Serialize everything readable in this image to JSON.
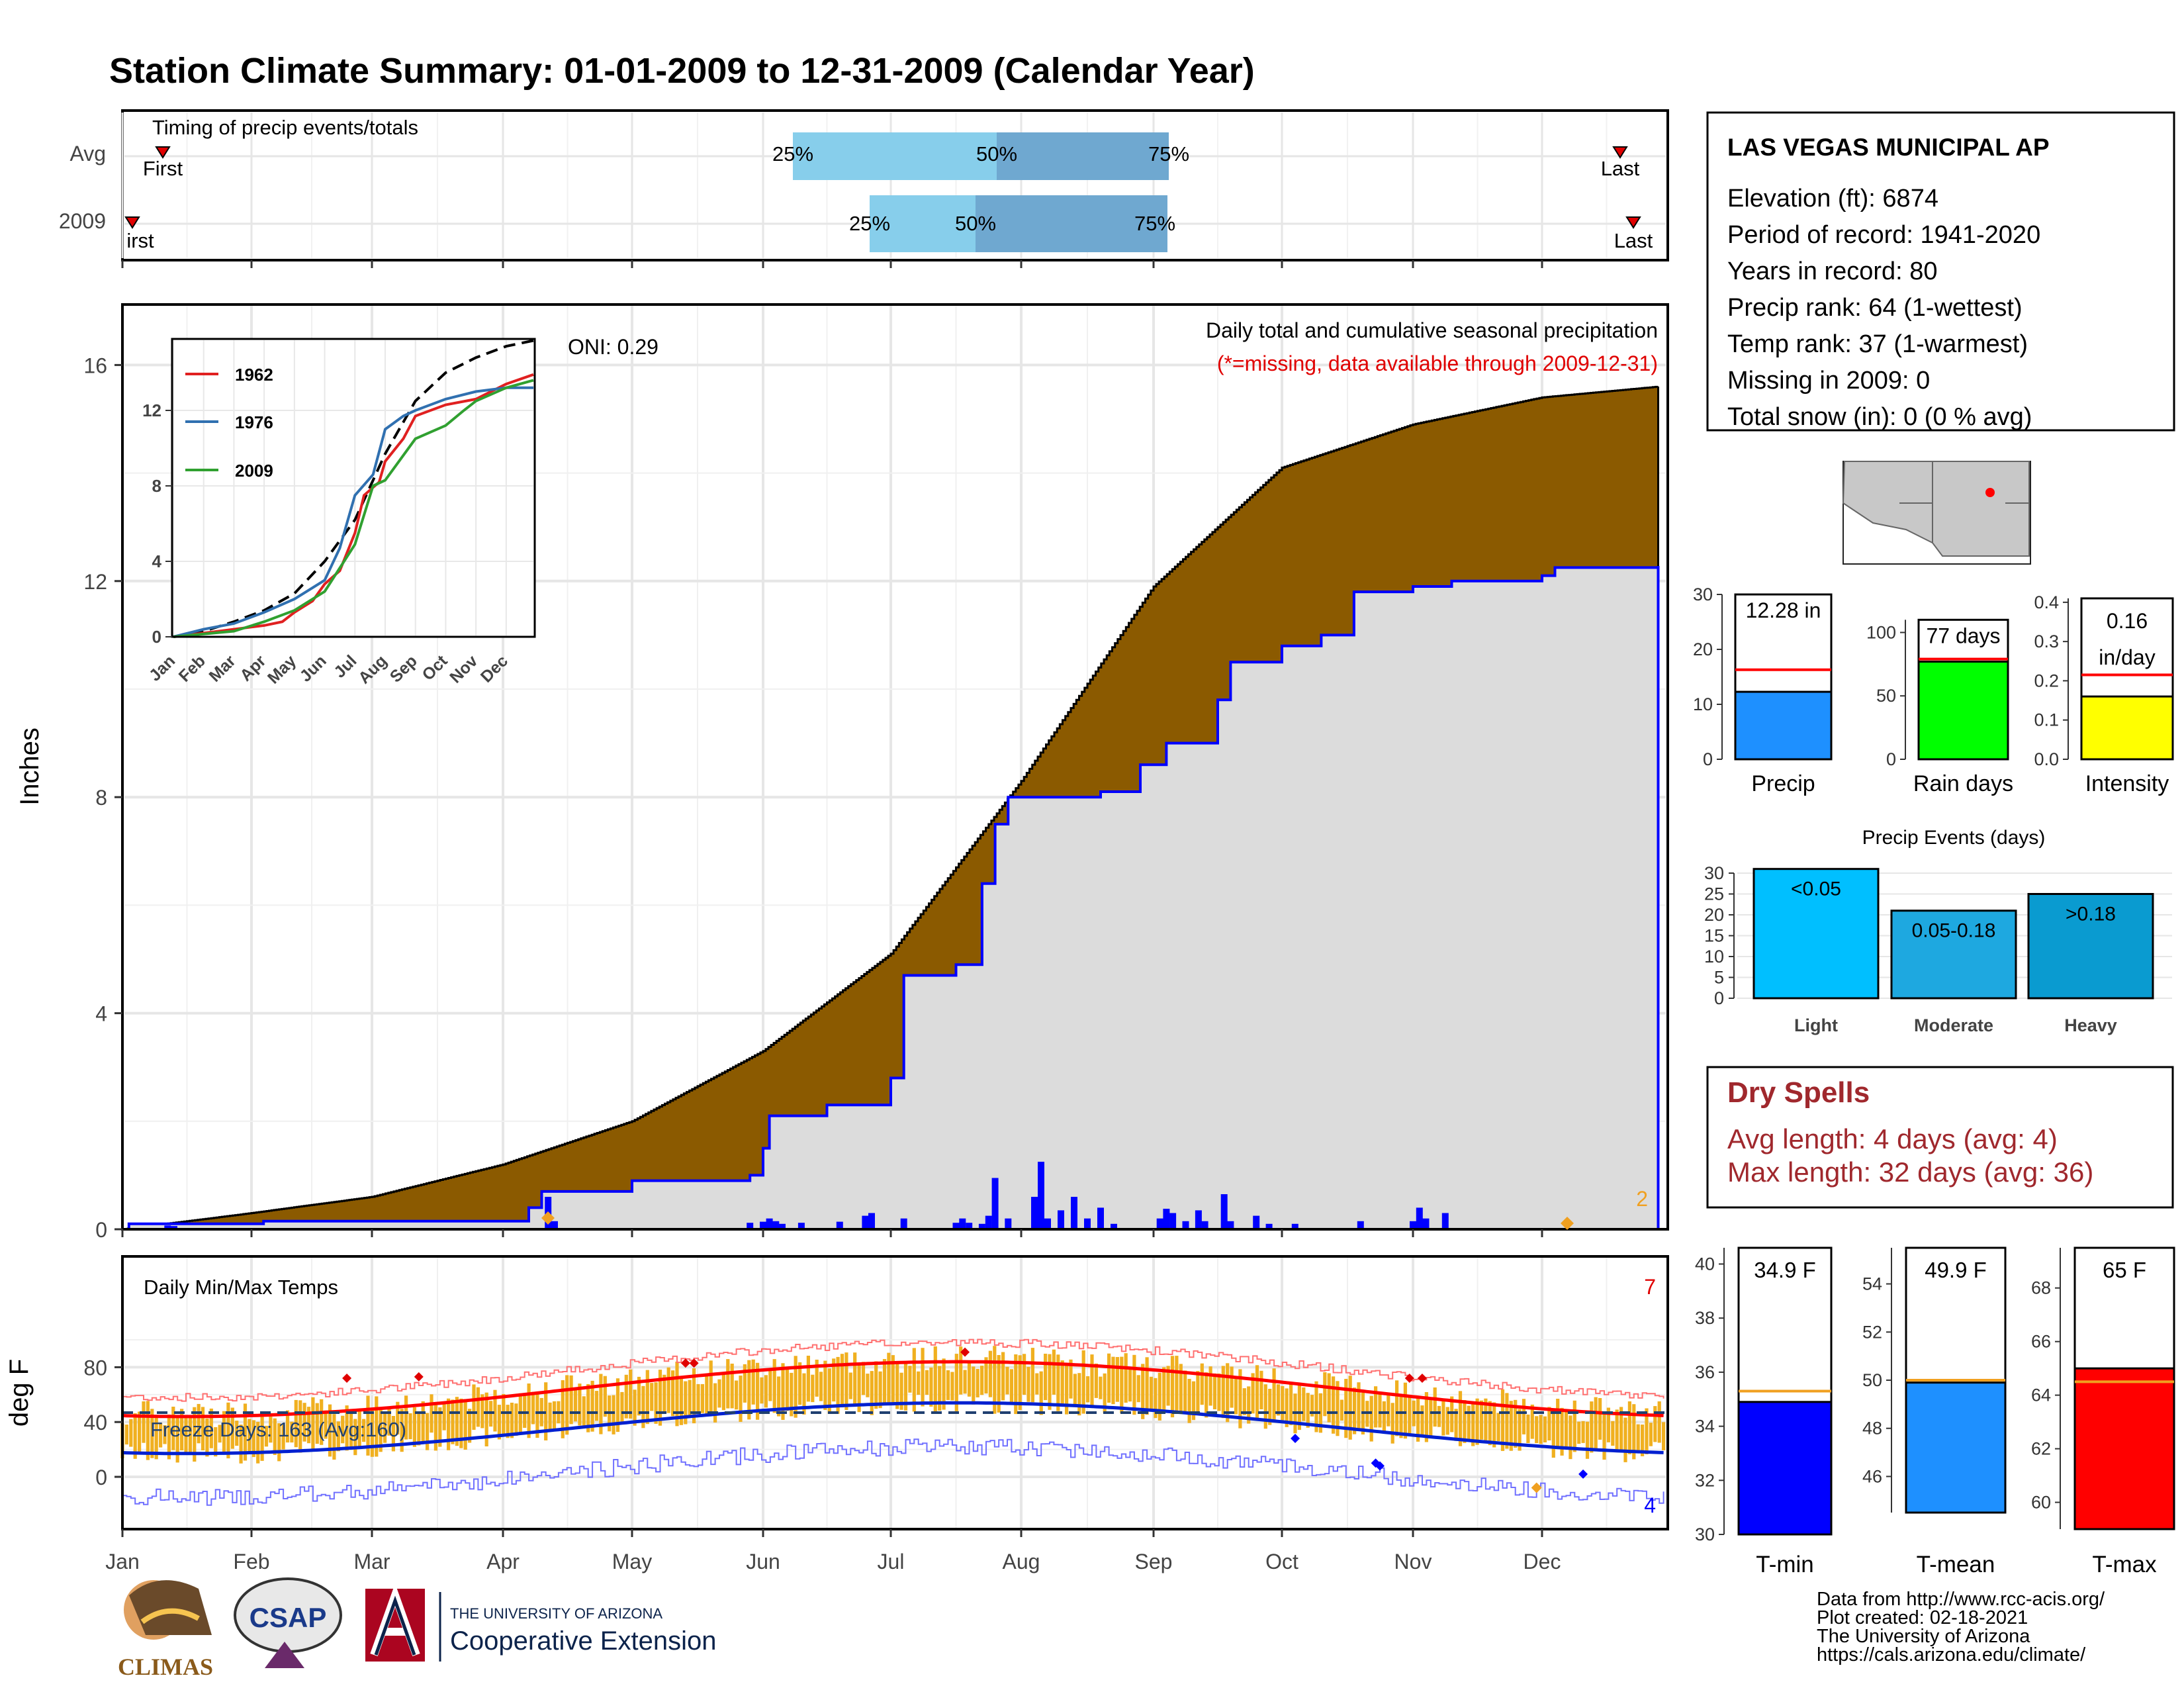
{
  "title": "Station Climate Summary: 01-01-2009 to 12-31-2009 (Calendar Year)",
  "colors": {
    "title": "#000080",
    "brown": "#8B5A00",
    "obs": "#dcdcdc",
    "blue": "#0000ff",
    "red": "#ff0000",
    "orange": "#f0b020",
    "light": "#87ceeb",
    "mid": "#6fa8d0"
  },
  "timing": {
    "label": "Timing of precip events/totals",
    "rows": [
      {
        "name": "Avg",
        "first": "First",
        "last": "Last",
        "p25": "25%",
        "p50": "50%",
        "p75": "75%"
      },
      {
        "name": "2009",
        "first": "irst",
        "last": "Last",
        "p25": "25%",
        "p50": "50%",
        "p75": "75%"
      }
    ]
  },
  "months": [
    "Jan",
    "Feb",
    "Mar",
    "Apr",
    "May",
    "Jun",
    "Jul",
    "Aug",
    "Sep",
    "Oct",
    "Nov",
    "Dec"
  ],
  "precip": {
    "ylabel": "Inches",
    "ticks": [
      "0",
      "4",
      "8",
      "12",
      "16"
    ],
    "heading": "Daily total and cumulative seasonal precipitation",
    "missing_note": "(*=missing, data available through 2009-12-31)",
    "oni": "ONI: 0.29",
    "missing_count": "2"
  },
  "inset": {
    "ticks": [
      "0",
      "4",
      "8",
      "12"
    ],
    "months": [
      "Jan",
      "Feb",
      "Mar",
      "Apr",
      "May",
      "Jun",
      "Jul",
      "Aug",
      "Sep",
      "Oct",
      "Nov",
      "Dec"
    ],
    "legend": [
      "1962",
      "1976",
      "2009"
    ]
  },
  "temps": {
    "ylabel": "deg F",
    "label": "Daily Min/Max Temps",
    "ticks": [
      "0",
      "40",
      "80"
    ],
    "freeze": "Freeze Days: 163 (Avg:160)",
    "count_max": "7",
    "count_min": "4"
  },
  "station": {
    "name": "LAS VEGAS MUNICIPAL AP",
    "lines": [
      "Elevation (ft): 6874",
      "Period of record: 1941-2020",
      "Years in record: 80",
      "Precip rank: 64 (1-wettest)",
      "Temp rank: 37 (1-warmest)",
      "Missing in 2009: 0",
      "Total snow (in): 0 (0 % avg)"
    ]
  },
  "gauges": [
    {
      "label": "Precip",
      "value_text": "12.28 in",
      "ticks": [
        "0",
        "10",
        "20",
        "30"
      ]
    },
    {
      "label": "Rain days",
      "value_text": "77 days",
      "ticks": [
        "0",
        "50",
        "100"
      ]
    },
    {
      "label": "Intensity",
      "value_text": "0.16",
      "value_text2": "in/day",
      "ticks": [
        "0.0",
        "0.1",
        "0.2",
        "0.3",
        "0.4"
      ]
    }
  ],
  "events": {
    "title": "Precip Events (days)",
    "ticks": [
      "0",
      "5",
      "10",
      "15",
      "20",
      "25",
      "30"
    ],
    "bars": [
      {
        "label": "Light",
        "value_text": "<0.05"
      },
      {
        "label": "Moderate",
        "value_text": "0.05-0.18"
      },
      {
        "label": "Heavy",
        "value_text": ">0.18"
      }
    ]
  },
  "dry": {
    "title": "Dry Spells",
    "avg": "Avg length: 4 days (avg: 4)",
    "max": "Max length: 32 days (avg: 36)"
  },
  "tgauges": [
    {
      "label": "T-min",
      "value_text": "34.9 F",
      "ticks": [
        "30",
        "32",
        "34",
        "36",
        "38",
        "40"
      ]
    },
    {
      "label": "T-mean",
      "value_text": "49.9 F",
      "ticks": [
        "46",
        "48",
        "50",
        "52",
        "54"
      ]
    },
    {
      "label": "T-max",
      "value_text": "65 F",
      "ticks": [
        "60",
        "62",
        "64",
        "66",
        "68"
      ]
    }
  ],
  "footer": [
    "Data from http://www.rcc-acis.org/",
    "Plot created: 02-18-2021",
    "The University of Arizona",
    "https://cals.arizona.edu/climate/"
  ],
  "logos": {
    "climas": "CLIMAS",
    "csap": "CSAP",
    "ua1": "THE UNIVERSITY OF ARIZONA",
    "ua2": "Cooperative Extension"
  },
  "chart_data": {
    "type": "area",
    "x_unit": "month",
    "cumulative_2009": [
      [
        1,
        0.1
      ],
      [
        2,
        0.15
      ],
      [
        3,
        0.2
      ],
      [
        4,
        0.6
      ],
      [
        5,
        1.1
      ],
      [
        6,
        2.3
      ],
      [
        7,
        4.9
      ],
      [
        7.6,
        8.0
      ],
      [
        8,
        8.2
      ],
      [
        9,
        10.4
      ],
      [
        10,
        11.0
      ],
      [
        11,
        11.8
      ],
      [
        12,
        12.28
      ]
    ],
    "cumulative_avg": [
      [
        1,
        0
      ],
      [
        2,
        0.3
      ],
      [
        3,
        0.6
      ],
      [
        4,
        1.2
      ],
      [
        5,
        2.0
      ],
      [
        6,
        3.3
      ],
      [
        7,
        5.1
      ],
      [
        8,
        8.3
      ],
      [
        9,
        11.9
      ],
      [
        10,
        14.1
      ],
      [
        11,
        14.9
      ],
      [
        12,
        15.4
      ],
      [
        12.9,
        15.6
      ]
    ],
    "ylim": [
      0,
      17
    ]
  }
}
